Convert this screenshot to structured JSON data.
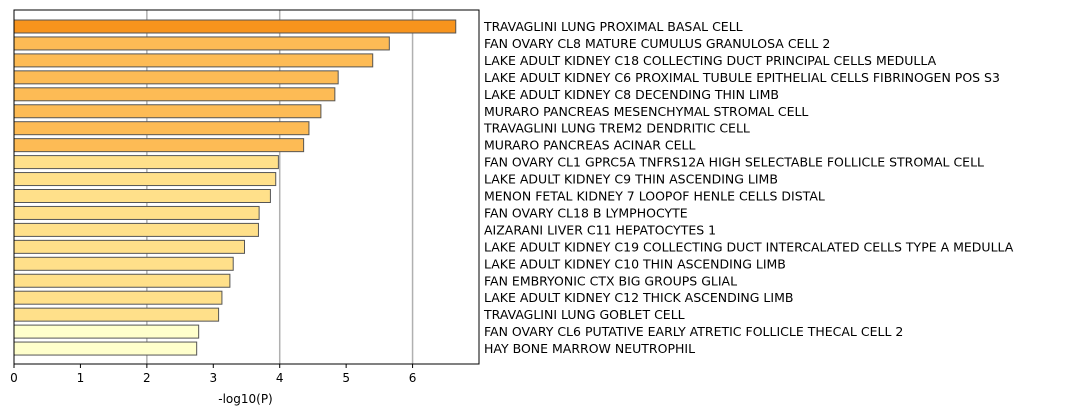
{
  "chart_data": {
    "type": "bar",
    "orientation": "horizontal",
    "xlabel": "-log10(P)",
    "xlim": [
      0,
      7
    ],
    "xticks": [
      0,
      1,
      2,
      3,
      4,
      5,
      6
    ],
    "grid": "vertical at 2, 4, 6",
    "categories": [
      "TRAVAGLINI LUNG PROXIMAL BASAL CELL",
      "FAN OVARY CL8 MATURE CUMULUS GRANULOSA CELL 2",
      "LAKE ADULT KIDNEY C18 COLLECTING DUCT PRINCIPAL CELLS MEDULLA",
      "LAKE ADULT KIDNEY C6 PROXIMAL TUBULE EPITHELIAL CELLS FIBRINOGEN POS S3",
      "LAKE ADULT KIDNEY C8 DECENDING THIN LIMB",
      "MURARO PANCREAS MESENCHYMAL STROMAL CELL",
      "TRAVAGLINI LUNG TREM2 DENDRITIC CELL",
      "MURARO PANCREAS ACINAR CELL",
      "FAN OVARY CL1 GPRC5A TNFRS12A HIGH SELECTABLE FOLLICLE STROMAL CELL",
      "LAKE ADULT KIDNEY C9 THIN ASCENDING LIMB",
      "MENON FETAL KIDNEY 7 LOOPOF HENLE CELLS DISTAL",
      "FAN OVARY CL18 B LYMPHOCYTE",
      "AIZARANI LIVER C11 HEPATOCYTES 1",
      "LAKE ADULT KIDNEY C19 COLLECTING DUCT INTERCALATED CELLS TYPE A MEDULLA",
      "LAKE ADULT KIDNEY C10 THIN ASCENDING LIMB",
      "FAN EMBRYONIC CTX BIG GROUPS GLIAL",
      "LAKE ADULT KIDNEY C12 THICK ASCENDING LIMB",
      "TRAVAGLINI LUNG GOBLET CELL",
      "FAN OVARY CL6 PUTATIVE EARLY ATRETIC FOLLICLE THECAL CELL 2",
      "HAY BONE MARROW NEUTROPHIL"
    ],
    "values": [
      6.65,
      5.65,
      5.4,
      4.88,
      4.83,
      4.62,
      4.44,
      4.36,
      3.98,
      3.94,
      3.86,
      3.69,
      3.68,
      3.47,
      3.3,
      3.25,
      3.13,
      3.08,
      2.78,
      2.75
    ],
    "bar_colors": [
      "#f7941d",
      "#fdbb55",
      "#fdbb55",
      "#fdbb55",
      "#fdbb55",
      "#fdbb55",
      "#fdbb55",
      "#fdbb55",
      "#ffe08a",
      "#ffe08a",
      "#ffe08a",
      "#ffe08a",
      "#ffe08a",
      "#ffe08a",
      "#ffe08a",
      "#ffe08a",
      "#ffe08a",
      "#ffe08a",
      "#ffffcc",
      "#ffffcc"
    ],
    "bar_edge_color": "#555555",
    "grid_color": "#b0b0b0"
  }
}
